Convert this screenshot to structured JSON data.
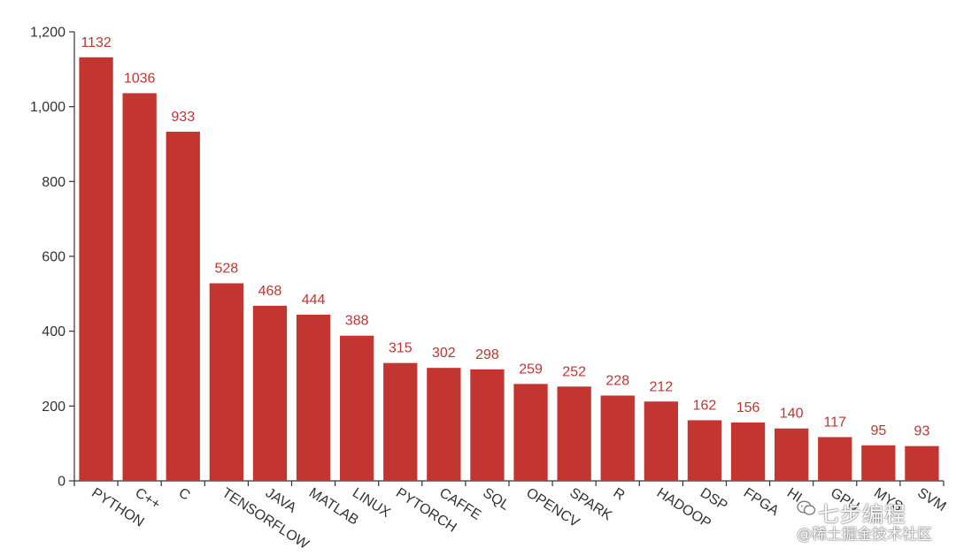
{
  "chart_data": {
    "type": "bar",
    "title": "",
    "xlabel": "",
    "ylabel": "",
    "ylim": [
      0,
      1200
    ],
    "yticks": [
      "0",
      "200",
      "400",
      "600",
      "800",
      "1,000",
      "1,200"
    ],
    "ytick_values": [
      0,
      200,
      400,
      600,
      800,
      1000,
      1200
    ],
    "grid": false,
    "bar_color": "#c23531",
    "label_color": "#c23531",
    "categories": [
      "PYTHON",
      "C++",
      "C",
      "TENSORFLOW",
      "JAVA",
      "MATLAB",
      "LINUX",
      "PYTORCH",
      "CAFFE",
      "SQL",
      "OPENCV",
      "SPARK",
      "R",
      "HADOOP",
      "DSP",
      "FPGA",
      "HIVE",
      "GPU",
      "MYSQL",
      "SVM"
    ],
    "values": [
      1132,
      1036,
      933,
      528,
      468,
      444,
      388,
      315,
      302,
      298,
      259,
      252,
      228,
      212,
      162,
      156,
      140,
      117,
      95,
      93
    ],
    "data_labels": [
      "1132",
      "1036",
      "933",
      "528",
      "468",
      "444",
      "388",
      "315",
      "302",
      "298",
      "259",
      "252",
      "228",
      "212",
      "162",
      "156",
      "140",
      "117",
      "95",
      "93"
    ],
    "tick_categories_visible": [
      "PYTHON",
      "C++",
      "C",
      "TENSORFLOW",
      "JAVA",
      "MATLAB",
      "LINUX",
      "PYTORCH",
      "CAFFE",
      "SQL",
      "OPENCV",
      "SPARK",
      "R",
      "HADOOP",
      "DSP",
      "FPGA",
      "HI",
      "GPU",
      "MYS",
      "SVM"
    ]
  },
  "watermark": {
    "top_text": "七步编程",
    "bottom_text": "@稀土掘金技术社区",
    "icon": "wechat-icon"
  }
}
